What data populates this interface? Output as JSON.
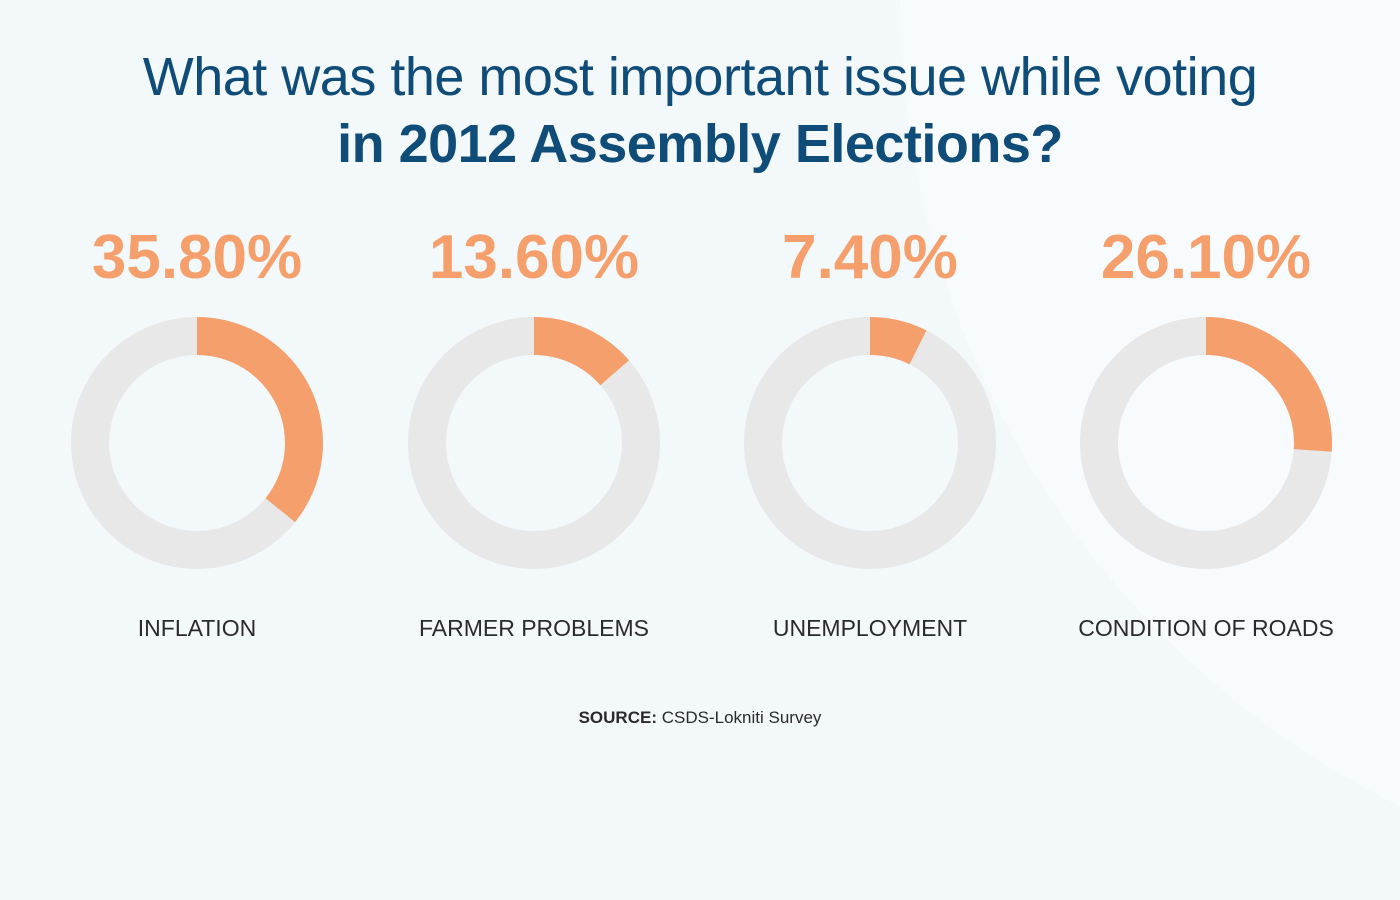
{
  "title": {
    "line1": "What was the most important issue while voting",
    "line2": "in 2012 Assembly Elections?"
  },
  "source": {
    "label": "SOURCE:",
    "text": "CSDS-Lokniti Survey"
  },
  "colors": {
    "accent": "#f5a06c",
    "track": "#e8e8e8",
    "title": "#0f4c78",
    "text": "#2b2b2b",
    "background": "#f3f8fb"
  },
  "chart_data": {
    "type": "pie",
    "variant": "donut-small-multiples",
    "title": "What was the most important issue while voting in 2012 Assembly Elections?",
    "categories": [
      "INFLATION",
      "FARMER PROBLEMS",
      "UNEMPLOYMENT",
      "CONDITION OF ROADS"
    ],
    "values": [
      35.8,
      13.6,
      7.4,
      26.1
    ],
    "labels": [
      "35.80%",
      "13.60%",
      "7.40%",
      "26.10%"
    ],
    "unit": "%",
    "max": 100,
    "start_angle": "top",
    "direction": "clockwise"
  }
}
